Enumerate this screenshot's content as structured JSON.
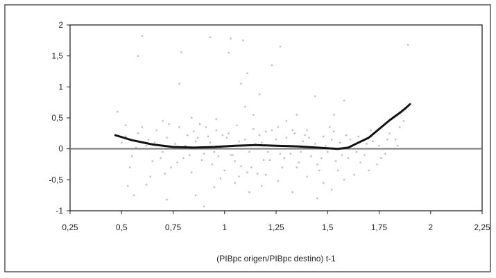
{
  "chart_data": {
    "type": "scatter",
    "title": "",
    "xlabel": "(PIBpc origen/PIBpc destino) t-1",
    "ylabel": "",
    "xlim": [
      0.25,
      2.25
    ],
    "ylim": [
      -1,
      2
    ],
    "x_ticks": [
      "0,25",
      "0,5",
      "0,75",
      "1",
      "1,25",
      "1,5",
      "1,75",
      "2",
      "2,25"
    ],
    "x_tick_values": [
      0.25,
      0.5,
      0.75,
      1.0,
      1.25,
      1.5,
      1.75,
      2.0,
      2.25
    ],
    "y_ticks": [
      "2",
      "1,5",
      "1",
      "0,5",
      "0",
      "-0,5",
      "-1"
    ],
    "y_tick_values": [
      2,
      1.5,
      1,
      0.5,
      0,
      -0.5,
      -1
    ],
    "grid": false,
    "legend": "none",
    "reference_line_y": 0,
    "series": [
      {
        "kind": "fitted-curve",
        "x": [
          0.47,
          0.55,
          0.65,
          0.75,
          0.85,
          0.95,
          1.05,
          1.15,
          1.25,
          1.35,
          1.45,
          1.55,
          1.6,
          1.65,
          1.7,
          1.75,
          1.8,
          1.85,
          1.88,
          1.9
        ],
        "values": [
          0.22,
          0.14,
          0.07,
          0.03,
          0.02,
          0.03,
          0.05,
          0.06,
          0.05,
          0.04,
          0.02,
          0.0,
          0.02,
          0.1,
          0.18,
          0.32,
          0.46,
          0.58,
          0.66,
          0.72
        ]
      }
    ],
    "scatter_points": [
      [
        0.6,
        1.82
      ],
      [
        0.58,
        1.5
      ],
      [
        0.79,
        1.56
      ],
      [
        0.78,
        1.05
      ],
      [
        0.93,
        1.8
      ],
      [
        1.02,
        1.55
      ],
      [
        1.03,
        1.78
      ],
      [
        1.09,
        1.75
      ],
      [
        1.11,
        1.22
      ],
      [
        1.08,
        1.05
      ],
      [
        1.27,
        1.65
      ],
      [
        1.23,
        1.35
      ],
      [
        1.17,
        0.88
      ],
      [
        1.1,
        0.68
      ],
      [
        1.44,
        0.85
      ],
      [
        1.58,
        0.78
      ],
      [
        1.53,
        0.55
      ],
      [
        1.35,
        0.55
      ],
      [
        1.89,
        1.68
      ],
      [
        1.87,
        0.45
      ],
      [
        0.48,
        0.6
      ],
      [
        0.52,
        0.38
      ],
      [
        0.53,
        -0.6
      ],
      [
        0.56,
        -0.75
      ],
      [
        0.62,
        -0.58
      ],
      [
        0.72,
        -0.82
      ],
      [
        0.86,
        -0.75
      ],
      [
        0.9,
        -0.93
      ],
      [
        0.95,
        -0.62
      ],
      [
        1.05,
        -0.55
      ],
      [
        1.12,
        -0.7
      ],
      [
        1.18,
        -0.6
      ],
      [
        1.26,
        -0.52
      ],
      [
        1.33,
        -0.7
      ],
      [
        1.45,
        -0.8
      ],
      [
        1.48,
        -0.55
      ],
      [
        1.52,
        -0.66
      ],
      [
        1.58,
        -0.5
      ],
      [
        1.63,
        -0.42
      ],
      [
        1.7,
        -0.35
      ],
      [
        0.5,
        0.1
      ],
      [
        0.55,
        -0.12
      ],
      [
        0.58,
        0.25
      ],
      [
        0.62,
        0.05
      ],
      [
        0.65,
        -0.2
      ],
      [
        0.67,
        0.3
      ],
      [
        0.7,
        -0.05
      ],
      [
        0.72,
        0.18
      ],
      [
        0.74,
        -0.3
      ],
      [
        0.76,
        0.08
      ],
      [
        0.78,
        0.35
      ],
      [
        0.8,
        -0.15
      ],
      [
        0.82,
        0.22
      ],
      [
        0.84,
        -0.38
      ],
      [
        0.86,
        0.12
      ],
      [
        0.88,
        0.4
      ],
      [
        0.9,
        -0.08
      ],
      [
        0.92,
        0.2
      ],
      [
        0.94,
        -0.25
      ],
      [
        0.96,
        0.3
      ],
      [
        0.98,
        0.02
      ],
      [
        1.0,
        -0.35
      ],
      [
        1.02,
        0.25
      ],
      [
        1.04,
        -0.1
      ],
      [
        1.06,
        0.38
      ],
      [
        1.08,
        -0.28
      ],
      [
        1.1,
        0.15
      ],
      [
        1.12,
        -0.05
      ],
      [
        1.14,
        0.32
      ],
      [
        1.16,
        -0.4
      ],
      [
        1.18,
        0.1
      ],
      [
        1.2,
        0.28
      ],
      [
        1.22,
        -0.18
      ],
      [
        1.24,
        0.05
      ],
      [
        1.26,
        0.35
      ],
      [
        1.28,
        -0.3
      ],
      [
        1.3,
        0.18
      ],
      [
        1.32,
        -0.08
      ],
      [
        1.34,
        0.25
      ],
      [
        1.36,
        -0.22
      ],
      [
        1.38,
        0.12
      ],
      [
        1.4,
        0.3
      ],
      [
        1.42,
        -0.12
      ],
      [
        1.44,
        0.08
      ],
      [
        1.46,
        -0.35
      ],
      [
        1.48,
        0.2
      ],
      [
        1.5,
        -0.05
      ],
      [
        1.52,
        0.15
      ],
      [
        1.54,
        -0.2
      ],
      [
        1.56,
        0.1
      ],
      [
        1.6,
        -0.15
      ],
      [
        1.62,
        0.05
      ],
      [
        1.65,
        0.2
      ],
      [
        1.68,
        -0.1
      ],
      [
        1.72,
        0.12
      ],
      [
        1.75,
        0.05
      ],
      [
        1.78,
        -0.08
      ],
      [
        1.8,
        0.25
      ],
      [
        1.83,
        0.15
      ],
      [
        1.85,
        0.35
      ],
      [
        0.52,
        0.2
      ],
      [
        0.57,
        0.02
      ],
      [
        0.63,
        0.15
      ],
      [
        0.69,
        -0.15
      ],
      [
        0.73,
        0.4
      ],
      [
        0.77,
        -0.22
      ],
      [
        0.81,
        0.05
      ],
      [
        0.85,
        0.28
      ],
      [
        0.89,
        -0.18
      ],
      [
        0.93,
        0.1
      ],
      [
        0.97,
        -0.12
      ],
      [
        1.01,
        0.18
      ],
      [
        1.05,
        -0.2
      ],
      [
        1.09,
        0.05
      ],
      [
        1.13,
        -0.3
      ],
      [
        1.17,
        0.22
      ],
      [
        1.21,
        -0.05
      ],
      [
        1.25,
        0.15
      ],
      [
        1.29,
        -0.15
      ],
      [
        1.33,
        0.3
      ],
      [
        1.37,
        -0.05
      ],
      [
        1.41,
        0.18
      ],
      [
        1.45,
        -0.25
      ],
      [
        1.49,
        0.05
      ],
      [
        1.53,
        0.28
      ],
      [
        1.57,
        -0.1
      ],
      [
        1.61,
        0.15
      ],
      [
        1.66,
        -0.22
      ],
      [
        1.71,
        0.3
      ],
      [
        1.76,
        -0.15
      ],
      [
        0.54,
        -0.3
      ],
      [
        0.6,
        0.35
      ],
      [
        0.66,
        0.1
      ],
      [
        0.71,
        -0.4
      ],
      [
        0.79,
        0.02
      ],
      [
        0.83,
        -0.1
      ],
      [
        0.87,
        0.18
      ],
      [
        0.91,
        0.35
      ],
      [
        0.95,
        -0.05
      ],
      [
        0.99,
        0.22
      ],
      [
        1.03,
        -0.1
      ],
      [
        1.07,
        0.12
      ],
      [
        1.11,
        -0.38
      ],
      [
        1.15,
        0.08
      ],
      [
        1.19,
        -0.18
      ],
      [
        1.23,
        0.3
      ],
      [
        1.27,
        -0.08
      ],
      [
        1.31,
        0.05
      ],
      [
        1.35,
        -0.3
      ],
      [
        1.39,
        0.22
      ],
      [
        1.43,
        0.02
      ],
      [
        1.47,
        -0.15
      ],
      [
        1.51,
        0.35
      ],
      [
        1.55,
        -0.35
      ],
      [
        1.59,
        0.22
      ],
      [
        1.64,
        -0.05
      ],
      [
        1.69,
        0.08
      ],
      [
        1.74,
        -0.25
      ],
      [
        1.79,
        0.15
      ],
      [
        1.84,
        0.05
      ],
      [
        0.98,
        -0.48
      ],
      [
        1.07,
        -0.45
      ],
      [
        1.2,
        -0.42
      ],
      [
        0.7,
        0.45
      ],
      [
        1.3,
        0.45
      ],
      [
        0.64,
        -0.45
      ],
      [
        0.84,
        0.5
      ],
      [
        1.14,
        0.55
      ],
      [
        1.4,
        -0.45
      ],
      [
        0.96,
        0.48
      ]
    ]
  }
}
